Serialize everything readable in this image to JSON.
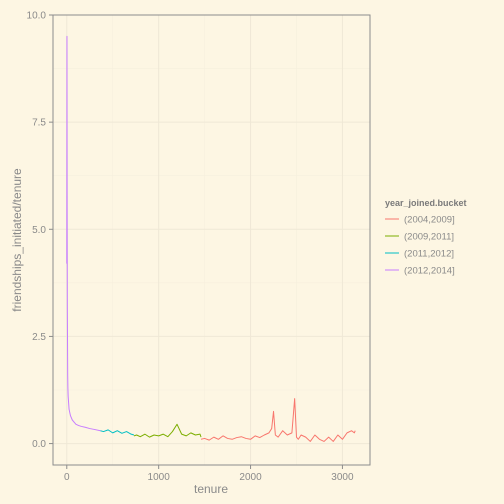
{
  "chart_data": {
    "type": "line",
    "xlabel": "tenure",
    "ylabel": "friendships_initiated/tenure",
    "xlim": [
      -150,
      3300
    ],
    "ylim": [
      -0.5,
      10
    ],
    "x_ticks": [
      0,
      1000,
      2000,
      3000
    ],
    "x_tick_labels": [
      "0",
      "1000",
      "2000",
      "3000"
    ],
    "y_ticks": [
      0,
      2.5,
      5,
      7.5,
      10
    ],
    "y_tick_labels": [
      "0.0",
      "2.5",
      "5.0",
      "7.5",
      "10.0"
    ],
    "grid": true,
    "legend": {
      "title": "year_joined.bucket",
      "placement": "right"
    },
    "series": [
      {
        "name": "(2004,2009]",
        "color": "#F8766D",
        "x": [
          1461,
          1500,
          1550,
          1600,
          1650,
          1700,
          1750,
          1800,
          1850,
          1900,
          1950,
          2000,
          2050,
          2100,
          2150,
          2200,
          2230,
          2250,
          2270,
          2300,
          2350,
          2400,
          2450,
          2480,
          2500,
          2520,
          2550,
          2600,
          2650,
          2700,
          2750,
          2800,
          2850,
          2900,
          2950,
          3000,
          3050,
          3100,
          3130,
          3139
        ],
        "y": [
          0.1,
          0.12,
          0.08,
          0.15,
          0.1,
          0.18,
          0.12,
          0.1,
          0.14,
          0.16,
          0.12,
          0.1,
          0.18,
          0.14,
          0.2,
          0.25,
          0.35,
          0.75,
          0.2,
          0.15,
          0.3,
          0.2,
          0.25,
          1.05,
          0.15,
          0.1,
          0.2,
          0.15,
          0.05,
          0.2,
          0.1,
          0.05,
          0.15,
          0.05,
          0.2,
          0.1,
          0.25,
          0.3,
          0.25,
          0.3
        ]
      },
      {
        "name": "(2009,2011]",
        "color": "#7CAE00",
        "x": [
          731,
          760,
          800,
          850,
          900,
          950,
          1000,
          1050,
          1100,
          1150,
          1200,
          1250,
          1300,
          1350,
          1400,
          1450,
          1461
        ],
        "y": [
          0.18,
          0.2,
          0.16,
          0.22,
          0.15,
          0.2,
          0.18,
          0.22,
          0.16,
          0.28,
          0.45,
          0.22,
          0.18,
          0.25,
          0.2,
          0.22,
          0.15
        ]
      },
      {
        "name": "(2011,2012]",
        "color": "#00BFC4",
        "x": [
          366,
          400,
          450,
          500,
          550,
          600,
          650,
          700,
          731
        ],
        "y": [
          0.3,
          0.28,
          0.32,
          0.25,
          0.3,
          0.24,
          0.28,
          0.22,
          0.2
        ]
      },
      {
        "name": "(2012,2014]",
        "color": "#C77CFF",
        "x": [
          0,
          2,
          4,
          6,
          8,
          10,
          12,
          15,
          20,
          25,
          30,
          40,
          50,
          60,
          80,
          100,
          130,
          160,
          200,
          250,
          300,
          366
        ],
        "y": [
          4.2,
          9.5,
          5.5,
          3.2,
          2.4,
          1.6,
          1.3,
          1.1,
          0.95,
          0.8,
          0.75,
          0.65,
          0.6,
          0.55,
          0.5,
          0.45,
          0.42,
          0.4,
          0.38,
          0.35,
          0.33,
          0.3
        ]
      }
    ]
  }
}
